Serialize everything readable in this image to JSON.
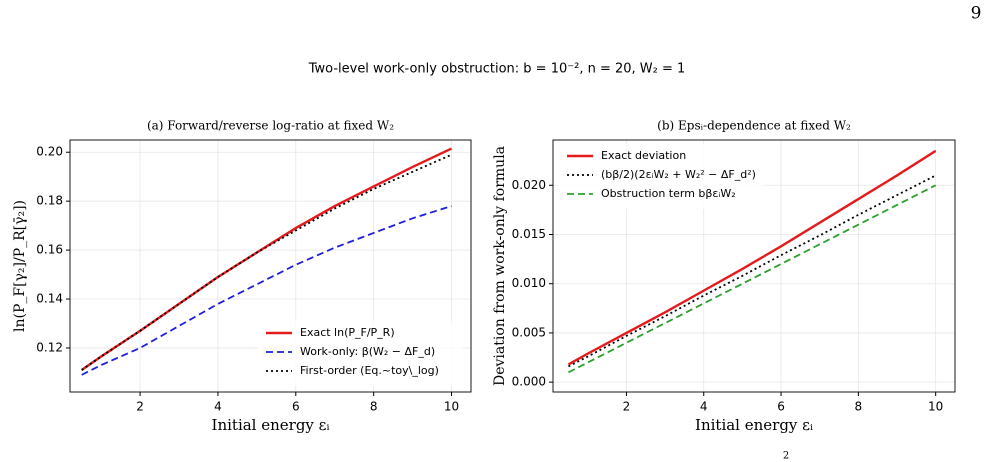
{
  "page_number": "9",
  "figure_title": "Two-level work-only obstruction: b = 10⁻², n = 20, W₂ = 1",
  "footer_fragment": "2",
  "chart_data": [
    {
      "type": "line",
      "title": "(a) Forward/reverse log-ratio at fixed W₂",
      "x_label": "Initial energy εᵢ",
      "y_label": "ln(P_F[γ₂]/P_R[γ̄₂])",
      "x": [
        0.5,
        1,
        2,
        3,
        4,
        5,
        6,
        7,
        8,
        9,
        10
      ],
      "series": [
        {
          "name": "Exact ln(P_F/P_R)",
          "color": "#e41a1c",
          "linestyle": "solid",
          "values": [
            0.111,
            0.1165,
            0.127,
            0.138,
            0.149,
            0.159,
            0.169,
            0.178,
            0.186,
            0.194,
            0.2015
          ]
        },
        {
          "name": "Work-only: β(W₂ − ΔF_d)",
          "color": "#1f1fdd",
          "linestyle": "dashed",
          "values": [
            0.109,
            0.113,
            0.12,
            0.129,
            0.138,
            0.146,
            0.154,
            0.161,
            0.167,
            0.173,
            0.178
          ]
        },
        {
          "name": "First-order (Eq.~toy\\_log)",
          "color": "#000000",
          "linestyle": "dotted",
          "values": [
            0.111,
            0.1165,
            0.127,
            0.138,
            0.149,
            0.159,
            0.168,
            0.177,
            0.185,
            0.192,
            0.199
          ]
        }
      ],
      "xlim": [
        0.2,
        10.5
      ],
      "xticks": [
        2,
        4,
        6,
        8,
        10
      ],
      "ylim": [
        0.102,
        0.205
      ],
      "yticks": [
        0.12,
        0.14,
        0.16,
        0.18,
        {
          "value": 0.2,
          "label": "0.20"
        }
      ],
      "grid": true,
      "legend": "lower right"
    },
    {
      "type": "line",
      "title": "(b) Epsᵢ-dependence at fixed W₂",
      "x_label": "Initial energy εᵢ",
      "y_label": "Deviation from work-only formula",
      "x": [
        0.5,
        1,
        2,
        3,
        4,
        5,
        6,
        7,
        8,
        9,
        10
      ],
      "series": [
        {
          "name": "Exact deviation",
          "color": "#e41a1c",
          "linestyle": "solid",
          "values": [
            0.0018,
            0.0029,
            0.005,
            0.0071,
            0.0093,
            0.0115,
            0.0138,
            0.0162,
            0.0186,
            0.021,
            0.0235
          ]
        },
        {
          "name": "(bβ/2)(2εᵢW₂ + W₂² − ΔF_d²)",
          "color": "#000000",
          "linestyle": "dotted",
          "values": [
            0.0016,
            0.0026,
            0.0047,
            0.0067,
            0.0088,
            0.0108,
            0.0129,
            0.0149,
            0.017,
            0.019,
            0.021
          ]
        },
        {
          "name": "Obstruction term bβεᵢW₂",
          "color": "#2ca02c",
          "linestyle": "dashed",
          "values": [
            0.001,
            0.002,
            0.004,
            0.006,
            0.008,
            0.01,
            0.012,
            0.014,
            0.016,
            0.018,
            0.02
          ]
        }
      ],
      "xlim": [
        0.1,
        10.5
      ],
      "xticks": [
        2,
        4,
        6,
        8,
        10
      ],
      "ylim": [
        -0.001,
        0.0246
      ],
      "yticks": [
        {
          "value": 0,
          "label": "0.000"
        },
        {
          "value": 0.005,
          "label": "0.005"
        },
        {
          "value": 0.01,
          "label": "0.010"
        },
        {
          "value": 0.015,
          "label": "0.015"
        },
        {
          "value": 0.02,
          "label": "0.020"
        }
      ],
      "grid": true,
      "legend": "upper left"
    }
  ]
}
